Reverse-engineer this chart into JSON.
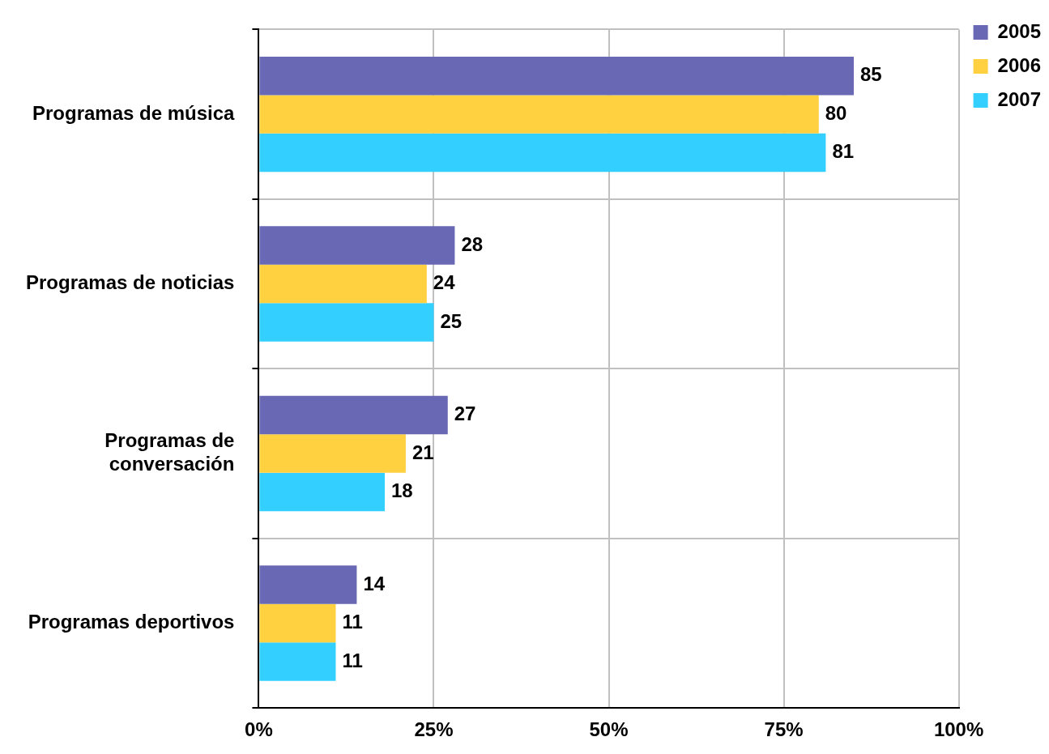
{
  "chart_data": {
    "type": "bar",
    "orientation": "horizontal",
    "categories": [
      "Programas de música",
      "Programas de noticias",
      [
        "Programas de",
        "conversación"
      ],
      "Programas deportivos"
    ],
    "series": [
      {
        "name": "2005",
        "color": "#6868b4",
        "values": [
          85,
          28,
          27,
          14
        ]
      },
      {
        "name": "2006",
        "color": "#ffd040",
        "values": [
          80,
          24,
          21,
          11
        ]
      },
      {
        "name": "2007",
        "color": "#33d0ff",
        "values": [
          81,
          25,
          18,
          11
        ]
      }
    ],
    "xlim": [
      0,
      100
    ],
    "xticks": [
      {
        "value": 0,
        "label": "0%"
      },
      {
        "value": 25,
        "label": "25%"
      },
      {
        "value": 50,
        "label": "50%"
      },
      {
        "value": 75,
        "label": "75%"
      },
      {
        "value": 100,
        "label": "100%"
      }
    ],
    "data_labels": true,
    "grid": true,
    "legend": "top right"
  }
}
